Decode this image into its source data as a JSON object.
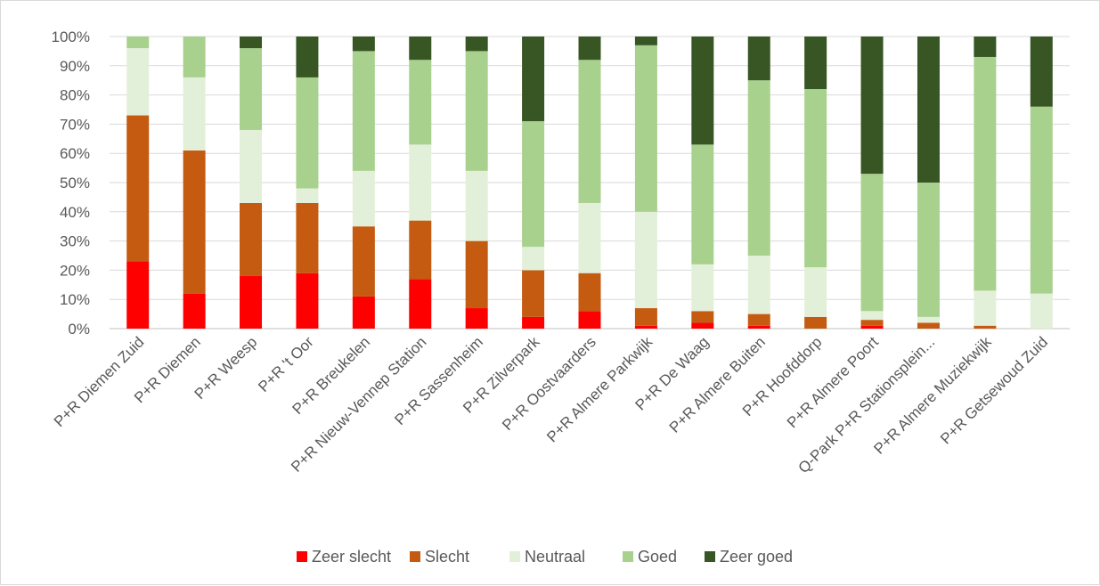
{
  "chart_data": {
    "type": "bar",
    "stacked": true,
    "percent_stacked": true,
    "title": "",
    "xlabel": "",
    "ylabel": "",
    "ylim": [
      0,
      100
    ],
    "y_ticks": [
      "0%",
      "10%",
      "20%",
      "30%",
      "40%",
      "50%",
      "60%",
      "70%",
      "80%",
      "90%",
      "100%"
    ],
    "grid": true,
    "legend_position": "bottom",
    "categories": [
      "P+R Diemen Zuid",
      "P+R Diemen",
      "P+R Weesp",
      "P+R 't Oor",
      "P+R Breukelen",
      "P+R Nieuw-Vennep Station",
      "P+R Sassenheim",
      "P+R Zilverpark",
      "P+R Oostvaarders",
      "P+R Almere Parkwijk",
      "P+R De Waag",
      "P+R Almere Buiten",
      "P+R Hoofddorp",
      "P+R Almere Poort",
      "Q-Park P+R Stationsplein...",
      "P+R Almere Muziekwijk",
      "P+R Getsewoud Zuid"
    ],
    "series": [
      {
        "name": "Zeer slecht",
        "color": "#ff0000",
        "values": [
          23,
          12,
          18,
          19,
          11,
          17,
          7,
          4,
          6,
          1,
          2,
          1,
          0,
          1,
          0,
          0,
          0
        ]
      },
      {
        "name": "Slecht",
        "color": "#c55a11",
        "values": [
          50,
          49,
          25,
          24,
          24,
          20,
          23,
          16,
          13,
          6,
          4,
          4,
          4,
          2,
          2,
          1,
          0
        ]
      },
      {
        "name": "Neutraal",
        "color": "#e2f0d9",
        "values": [
          23,
          25,
          25,
          5,
          19,
          26,
          24,
          8,
          24,
          33,
          16,
          20,
          17,
          3,
          2,
          12,
          12
        ]
      },
      {
        "name": "Goed",
        "color": "#a9d18e",
        "values": [
          4,
          14,
          28,
          38,
          41,
          29,
          41,
          43,
          49,
          57,
          41,
          60,
          61,
          47,
          46,
          80,
          64
        ]
      },
      {
        "name": "Zeer goed",
        "color": "#375623",
        "values": [
          0,
          0,
          4,
          14,
          5,
          8,
          5,
          29,
          8,
          3,
          37,
          15,
          18,
          47,
          50,
          7,
          24
        ]
      }
    ]
  }
}
